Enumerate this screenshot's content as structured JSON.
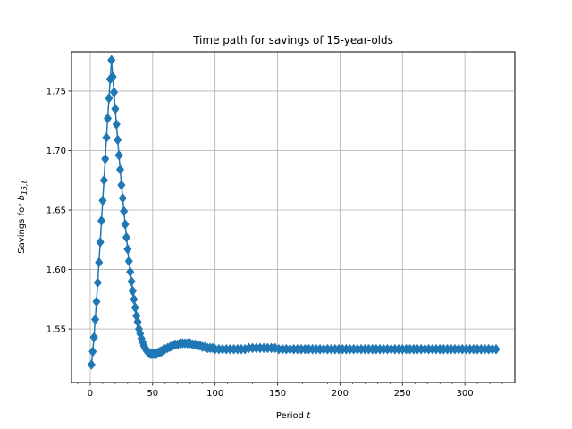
{
  "chart_data": {
    "type": "line",
    "title": "Time path for savings of 15-year-olds",
    "xlabel_text": "Period ",
    "xlabel_var": "t",
    "ylabel_text": "Savings for ",
    "ylabel_var": "b",
    "ylabel_sub": "15,t",
    "xlim": [
      -15,
      340
    ],
    "ylim": [
      1.505,
      1.783
    ],
    "xticks": [
      0,
      50,
      100,
      150,
      200,
      250,
      300
    ],
    "xtick_labels": [
      "0",
      "50",
      "100",
      "150",
      "200",
      "250",
      "300"
    ],
    "yticks": [
      1.55,
      1.6,
      1.65,
      1.7,
      1.75
    ],
    "ytick_labels": [
      "1.55",
      "1.60",
      "1.65",
      "1.70",
      "1.75"
    ],
    "grid": true,
    "marker": "diamond",
    "color": "#1f77b4",
    "series": [
      {
        "x": [
          1,
          2,
          3,
          4,
          5,
          6,
          7,
          8,
          9,
          10,
          11,
          12,
          13,
          14,
          15,
          16,
          17,
          18,
          19,
          20,
          21,
          22,
          23,
          24,
          25,
          26,
          27,
          28,
          29,
          30,
          31,
          32,
          33,
          34,
          35,
          36,
          37,
          38,
          39,
          40,
          41,
          42,
          43,
          44,
          45,
          46,
          47,
          48,
          49,
          50,
          51,
          52,
          53,
          54,
          55,
          56,
          57,
          58,
          59,
          60,
          62,
          64,
          66,
          68,
          70,
          72,
          74,
          76,
          78,
          80,
          82,
          84,
          86,
          88,
          90,
          92,
          94,
          96,
          98,
          100,
          103,
          106,
          109,
          112,
          115,
          118,
          121,
          124,
          127,
          130,
          133,
          136,
          139,
          142,
          145,
          148,
          151,
          154,
          157,
          160,
          163,
          166,
          169,
          172,
          175,
          178,
          181,
          184,
          187,
          190,
          193,
          196,
          199,
          202,
          205,
          208,
          211,
          214,
          217,
          220,
          223,
          226,
          229,
          232,
          235,
          238,
          241,
          244,
          247,
          250,
          253,
          256,
          259,
          262,
          265,
          268,
          271,
          274,
          277,
          280,
          283,
          286,
          289,
          292,
          295,
          298,
          301,
          304,
          307,
          310,
          313,
          316,
          319,
          322,
          325
        ],
        "values": [
          1.52,
          1.531,
          1.543,
          1.558,
          1.573,
          1.589,
          1.606,
          1.623,
          1.641,
          1.658,
          1.675,
          1.693,
          1.711,
          1.727,
          1.744,
          1.76,
          1.776,
          1.762,
          1.749,
          1.735,
          1.722,
          1.709,
          1.696,
          1.684,
          1.671,
          1.66,
          1.649,
          1.638,
          1.627,
          1.617,
          1.607,
          1.598,
          1.59,
          1.582,
          1.575,
          1.568,
          1.561,
          1.556,
          1.55,
          1.546,
          1.542,
          1.539,
          1.536,
          1.534,
          1.532,
          1.531,
          1.53,
          1.529,
          1.529,
          1.529,
          1.529,
          1.529,
          1.529,
          1.53,
          1.53,
          1.531,
          1.531,
          1.532,
          1.533,
          1.533,
          1.534,
          1.535,
          1.536,
          1.537,
          1.537,
          1.538,
          1.538,
          1.538,
          1.538,
          1.538,
          1.537,
          1.537,
          1.536,
          1.536,
          1.535,
          1.535,
          1.534,
          1.534,
          1.534,
          1.533,
          1.533,
          1.533,
          1.533,
          1.533,
          1.533,
          1.533,
          1.533,
          1.533,
          1.534,
          1.534,
          1.534,
          1.534,
          1.534,
          1.534,
          1.534,
          1.534,
          1.533,
          1.533,
          1.533,
          1.533,
          1.533,
          1.533,
          1.533,
          1.533,
          1.533,
          1.533,
          1.533,
          1.533,
          1.533,
          1.533,
          1.533,
          1.533,
          1.533,
          1.533,
          1.533,
          1.533,
          1.533,
          1.533,
          1.533,
          1.533,
          1.533,
          1.533,
          1.533,
          1.533,
          1.533,
          1.533,
          1.533,
          1.533,
          1.533,
          1.533,
          1.533,
          1.533,
          1.533,
          1.533,
          1.533,
          1.533,
          1.533,
          1.533,
          1.533,
          1.533,
          1.533,
          1.533,
          1.533,
          1.533,
          1.533,
          1.533,
          1.533,
          1.533,
          1.533,
          1.533,
          1.533,
          1.533,
          1.533,
          1.533,
          1.533
        ]
      }
    ]
  }
}
